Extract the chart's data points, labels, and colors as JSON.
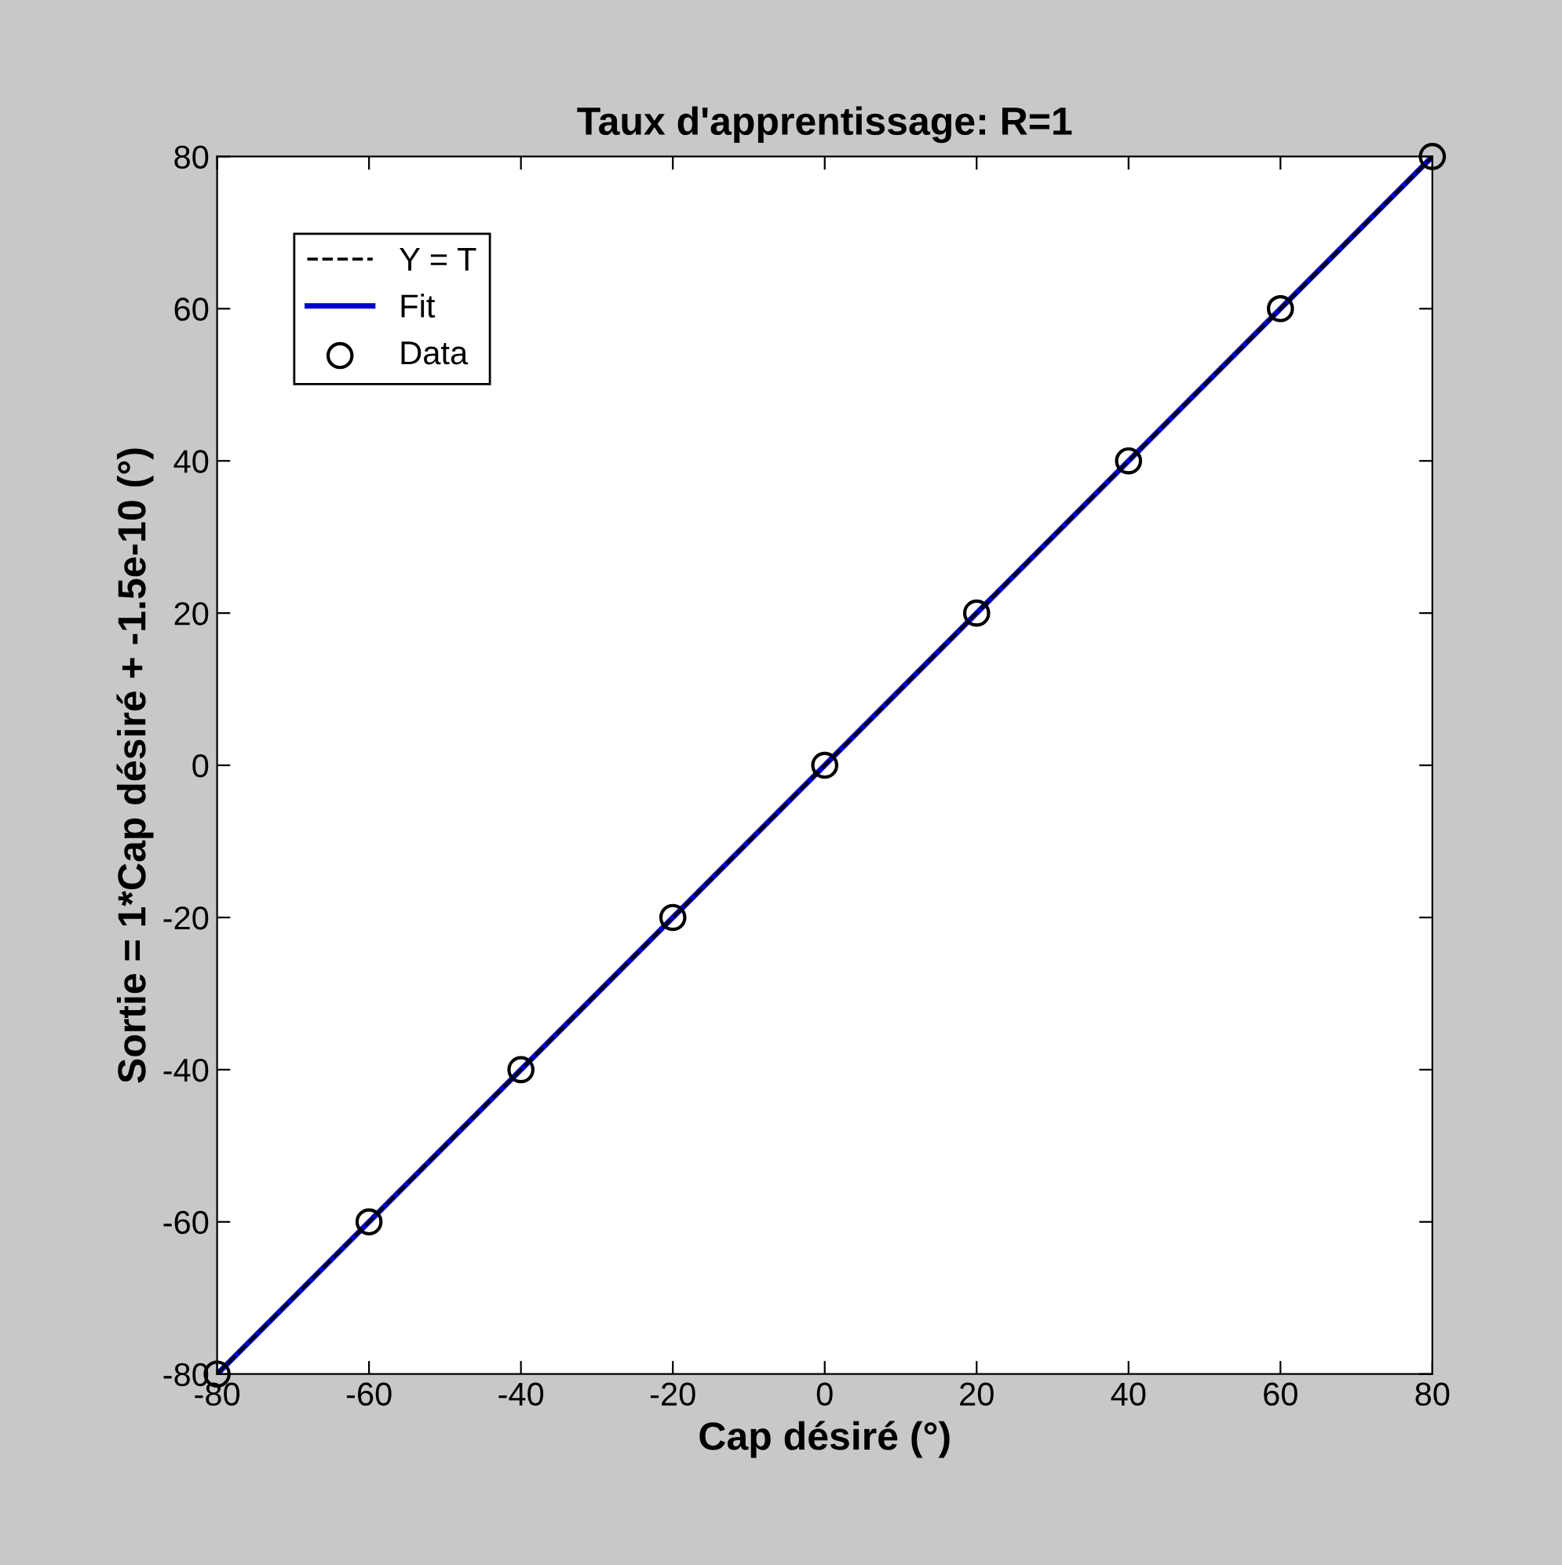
{
  "chart_data": {
    "type": "line",
    "title": "Taux d'apprentissage: R=1",
    "xlabel": "Cap désiré (°)",
    "ylabel": "Sortie = 1*Cap désiré + -1.5e-10 (°)",
    "series": [
      {
        "name": "Y = T",
        "color": "#000000",
        "line_style": "dashed",
        "marker": "none",
        "x": [
          -80,
          80
        ],
        "values": [
          -80,
          80
        ]
      },
      {
        "name": "Fit",
        "color": "#0000cc",
        "line_style": "solid",
        "marker": "none",
        "x": [
          -80,
          80
        ],
        "values": [
          -80,
          80
        ]
      },
      {
        "name": "Data",
        "type": "scatter",
        "color": "#000000",
        "marker": "circle",
        "x": [
          -80,
          -60,
          -40,
          -20,
          0,
          20,
          40,
          60,
          80
        ],
        "values": [
          -80,
          -60,
          -40,
          -20,
          0,
          20,
          40,
          60,
          80
        ]
      }
    ],
    "xlim": [
      -80,
      80
    ],
    "ylim": [
      -80,
      80
    ],
    "xticks": [
      -80,
      -60,
      -40,
      -20,
      0,
      20,
      40,
      60,
      80
    ],
    "yticks": [
      -80,
      -60,
      -40,
      -20,
      0,
      20,
      40,
      60,
      80
    ],
    "grid": false,
    "legend": "top left"
  }
}
